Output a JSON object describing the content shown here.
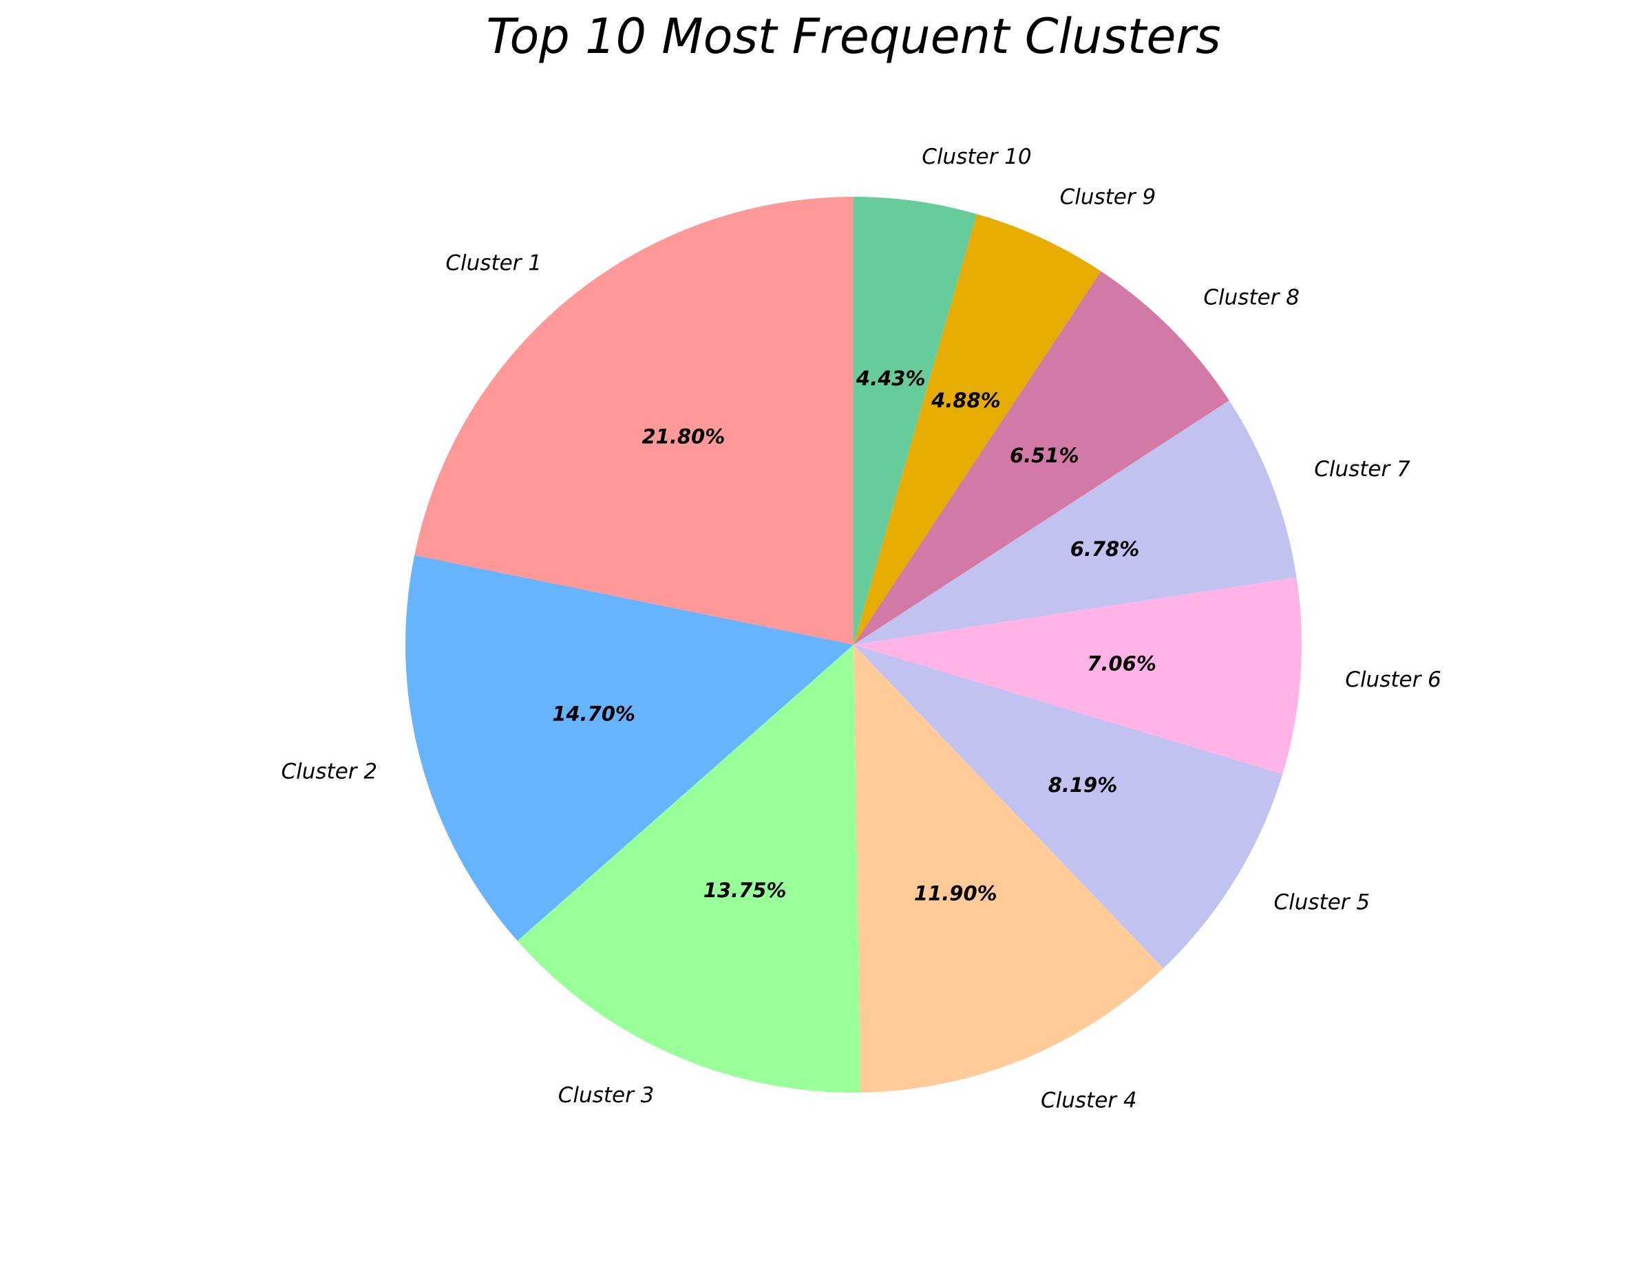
{
  "chart_data": {
    "type": "pie",
    "title": "Top 10 Most Frequent Clusters",
    "categories": [
      "Cluster 1",
      "Cluster 2",
      "Cluster 3",
      "Cluster 4",
      "Cluster 5",
      "Cluster 6",
      "Cluster 7",
      "Cluster 8",
      "Cluster 9",
      "Cluster 10"
    ],
    "values": [
      21.8,
      14.7,
      13.75,
      11.9,
      8.19,
      7.06,
      6.78,
      6.51,
      4.88,
      4.43
    ],
    "value_labels": [
      "21.80%",
      "14.70%",
      "13.75%",
      "11.90%",
      "8.19%",
      "7.06%",
      "6.78%",
      "6.51%",
      "4.88%",
      "4.43%"
    ],
    "colors": [
      "#ff9999",
      "#66b3ff",
      "#99ff99",
      "#ffcc99",
      "#c2c2f0",
      "#ffb3e6",
      "#c2c2f0",
      "#d279a6",
      "#e6ac00",
      "#66cc99"
    ],
    "start_angle_deg": 90,
    "direction": "counterclockwise",
    "legend": "none"
  }
}
